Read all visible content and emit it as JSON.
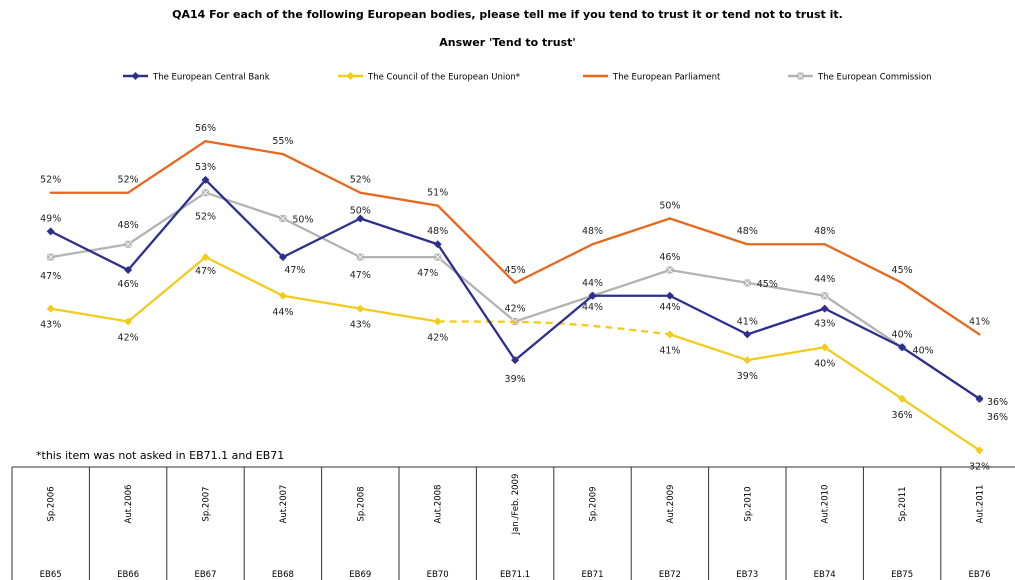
{
  "chart_data": {
    "type": "line",
    "title": "QA14 For each of the following European bodies, please tell me if you tend to trust it or tend not to trust it.",
    "subtitle": "Answer 'Tend to trust'",
    "categories": [
      "Sp.2006",
      "Aut.2006",
      "Sp.2007",
      "Aut.2007",
      "Sp.2008",
      "Aut.2008",
      "Jan./Feb. 2009",
      "Sp.2009",
      "Aut.2009",
      "Sp.2010",
      "Aut.2010",
      "Sp.2011",
      "Aut.2011"
    ],
    "codes": [
      "EB65",
      "EB66",
      "EB67",
      "EB68",
      "EB69",
      "EB70",
      "EB71.1",
      "EB71",
      "EB72",
      "EB73",
      "EB74",
      "EB75",
      "EB76"
    ],
    "series": [
      {
        "name": "The European Central Bank",
        "color": "#2e2e8c",
        "marker": "diamond",
        "values": [
          49,
          46,
          53,
          47,
          50,
          48,
          39,
          44,
          44,
          41,
          43,
          40,
          36
        ]
      },
      {
        "name": "The Council of the European Union*",
        "color": "#f2cc1d",
        "marker": "diamond",
        "values": [
          43,
          42,
          47,
          44,
          43,
          42,
          null,
          null,
          41,
          39,
          40,
          36,
          32
        ]
      },
      {
        "name": "The European Parliament",
        "color": "#e8671c",
        "marker": "none",
        "values": [
          52,
          52,
          56,
          55,
          52,
          51,
          45,
          48,
          50,
          48,
          48,
          45,
          41
        ]
      },
      {
        "name": "The European Commission",
        "color": "#b3b3b3",
        "marker": "square",
        "values": [
          47,
          48,
          52,
          50,
          47,
          47,
          42,
          44,
          46,
          45,
          44,
          40,
          36
        ]
      }
    ],
    "ylim": [
      30,
      58
    ],
    "legend_position": "top",
    "grid": false
  },
  "footnote": "*this item was not asked in EB71.1 and EB71"
}
